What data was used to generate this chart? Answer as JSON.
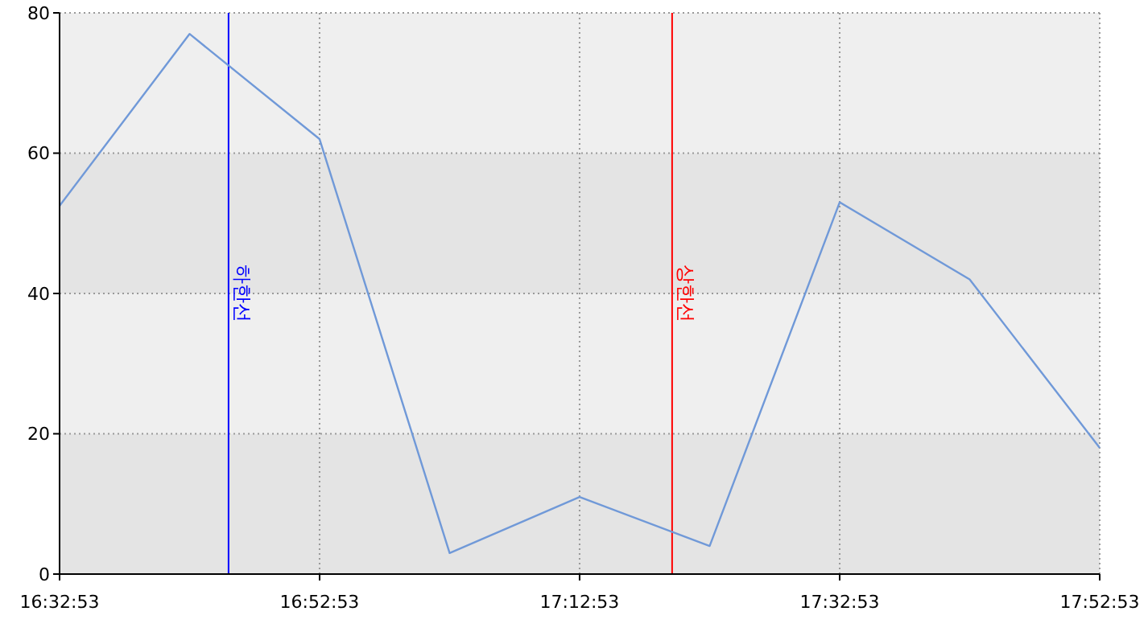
{
  "chart_data": {
    "type": "line",
    "x": [
      16.5481,
      16.7147,
      16.8814,
      17.0481,
      17.2147,
      17.3814,
      17.5481,
      17.7147,
      17.8814
    ],
    "series": [
      {
        "color": "#7099d8",
        "values": [
          52.5,
          77,
          62,
          3,
          11,
          4,
          53,
          42,
          18
        ]
      }
    ],
    "xlim": [
      16.5481,
      17.8814
    ],
    "xticks": [
      {
        "value": 16.5481,
        "label": "16:32:53"
      },
      {
        "value": 16.8814,
        "label": "16:52:53"
      },
      {
        "value": 17.2147,
        "label": "17:12:53"
      },
      {
        "value": 17.5481,
        "label": "17:32:53"
      },
      {
        "value": 17.8814,
        "label": "17:52:53"
      }
    ],
    "ylim": [
      0,
      80
    ],
    "yticks": [
      0,
      20,
      40,
      60,
      80
    ],
    "grid": true,
    "marker": "none",
    "line_style": "solid",
    "ref_lines": [
      {
        "axis": "x",
        "value": 16.7647,
        "label": "하한선",
        "color": "#0000ff"
      },
      {
        "axis": "x",
        "value": 17.3333,
        "label": "상한선",
        "color": "#ff0000"
      }
    ]
  }
}
